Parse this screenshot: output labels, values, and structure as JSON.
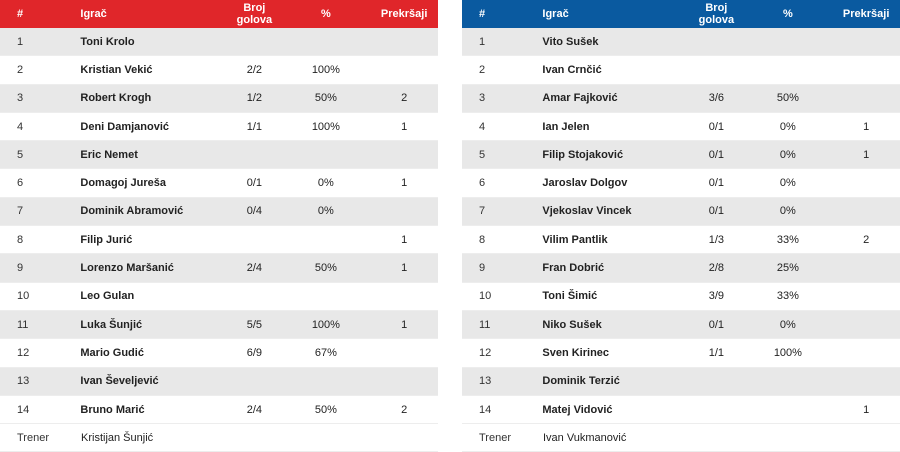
{
  "headers": {
    "num": "#",
    "player": "Igrač",
    "goals": "Broj golova",
    "pct": "%",
    "fouls": "Prekršaji"
  },
  "coach_label": "Trener",
  "colors": {
    "home": "#e0262a",
    "away": "#0a5aa0",
    "row_shade": "#e8e8e8"
  },
  "home": {
    "players": [
      {
        "num": "1",
        "name": "Toni Krolo",
        "goals": "",
        "pct": "",
        "fouls": ""
      },
      {
        "num": "2",
        "name": "Kristian Vekić",
        "goals": "2/2",
        "pct": "100%",
        "fouls": ""
      },
      {
        "num": "3",
        "name": "Robert Krogh",
        "goals": "1/2",
        "pct": "50%",
        "fouls": "2"
      },
      {
        "num": "4",
        "name": "Deni Damjanović",
        "goals": "1/1",
        "pct": "100%",
        "fouls": "1"
      },
      {
        "num": "5",
        "name": "Eric Nemet",
        "goals": "",
        "pct": "",
        "fouls": ""
      },
      {
        "num": "6",
        "name": "Domagoj Jureša",
        "goals": "0/1",
        "pct": "0%",
        "fouls": "1"
      },
      {
        "num": "7",
        "name": "Dominik Abramović",
        "goals": "0/4",
        "pct": "0%",
        "fouls": ""
      },
      {
        "num": "8",
        "name": "Filip Jurić",
        "goals": "",
        "pct": "",
        "fouls": "1"
      },
      {
        "num": "9",
        "name": "Lorenzo Maršanić",
        "goals": "2/4",
        "pct": "50%",
        "fouls": "1"
      },
      {
        "num": "10",
        "name": "Leo Gulan",
        "goals": "",
        "pct": "",
        "fouls": ""
      },
      {
        "num": "11",
        "name": "Luka Šunjić",
        "goals": "5/5",
        "pct": "100%",
        "fouls": "1"
      },
      {
        "num": "12",
        "name": "Mario Gudić",
        "goals": "6/9",
        "pct": "67%",
        "fouls": ""
      },
      {
        "num": "13",
        "name": "Ivan Ševeljević",
        "goals": "",
        "pct": "",
        "fouls": ""
      },
      {
        "num": "14",
        "name": "Bruno Marić",
        "goals": "2/4",
        "pct": "50%",
        "fouls": "2"
      }
    ],
    "coach": "Kristijan Šunjić"
  },
  "away": {
    "players": [
      {
        "num": "1",
        "name": "Vito Sušek",
        "goals": "",
        "pct": "",
        "fouls": ""
      },
      {
        "num": "2",
        "name": "Ivan Crnčić",
        "goals": "",
        "pct": "",
        "fouls": ""
      },
      {
        "num": "3",
        "name": "Amar Fajković",
        "goals": "3/6",
        "pct": "50%",
        "fouls": ""
      },
      {
        "num": "4",
        "name": "Ian Jelen",
        "goals": "0/1",
        "pct": "0%",
        "fouls": "1"
      },
      {
        "num": "5",
        "name": "Filip Stojaković",
        "goals": "0/1",
        "pct": "0%",
        "fouls": "1"
      },
      {
        "num": "6",
        "name": "Jaroslav Dolgov",
        "goals": "0/1",
        "pct": "0%",
        "fouls": ""
      },
      {
        "num": "7",
        "name": "Vjekoslav Vincek",
        "goals": "0/1",
        "pct": "0%",
        "fouls": ""
      },
      {
        "num": "8",
        "name": "Vilim Pantlik",
        "goals": "1/3",
        "pct": "33%",
        "fouls": "2"
      },
      {
        "num": "9",
        "name": "Fran Dobrić",
        "goals": "2/8",
        "pct": "25%",
        "fouls": ""
      },
      {
        "num": "10",
        "name": "Toni Šimić",
        "goals": "3/9",
        "pct": "33%",
        "fouls": ""
      },
      {
        "num": "11",
        "name": "Niko Sušek",
        "goals": "0/1",
        "pct": "0%",
        "fouls": ""
      },
      {
        "num": "12",
        "name": "Sven Kirinec",
        "goals": "1/1",
        "pct": "100%",
        "fouls": ""
      },
      {
        "num": "13",
        "name": "Dominik Terzić",
        "goals": "",
        "pct": "",
        "fouls": ""
      },
      {
        "num": "14",
        "name": "Matej Vidović",
        "goals": "",
        "pct": "",
        "fouls": "1"
      }
    ],
    "coach": "Ivan Vukmanović"
  }
}
